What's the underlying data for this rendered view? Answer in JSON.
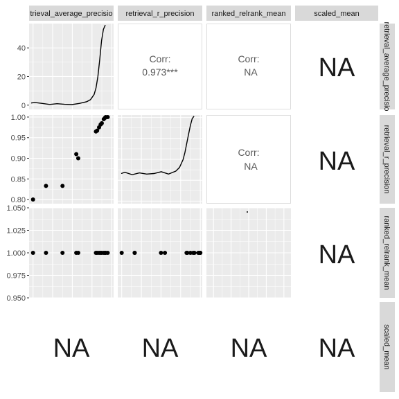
{
  "chart_data": {
    "type": "scatter-matrix",
    "variables": [
      "retrieval_average_precision",
      "retrieval_r_precision",
      "ranked_relrank_mean",
      "scaled_mean"
    ],
    "column_strips": [
      "trieval_average_precisio",
      "retrieval_r_precision",
      "ranked_relrank_mean",
      "scaled_mean"
    ],
    "row_strips": [
      "retrieval_average_precisio",
      "retrieval_r_precision",
      "ranked_relrank_mean",
      "scaled_mean"
    ],
    "correlations": {
      "r1c2": {
        "label": "Corr:",
        "value": "0.973***"
      },
      "r1c3": {
        "label": "Corr:",
        "value": "NA"
      },
      "r2c3": {
        "label": "Corr:",
        "value": "NA"
      }
    },
    "na_text": "NA",
    "axes": {
      "row1": {
        "ticks": [
          0,
          20,
          40
        ],
        "tick_labels": [
          "0",
          "20",
          "40"
        ],
        "ylim": [
          -3,
          57
        ]
      },
      "row2": {
        "ticks": [
          0.8,
          0.85,
          0.9,
          0.95,
          1.0
        ],
        "tick_labels": [
          "0.80",
          "0.85",
          "0.90",
          "0.95",
          "1.00"
        ],
        "ylim": [
          0.79,
          1.005
        ]
      },
      "row3": {
        "ticks": [
          0.95,
          0.975,
          1.0,
          1.025,
          1.05
        ],
        "tick_labels": [
          "0.950",
          "0.975",
          "1.000",
          "1.025",
          "1.050"
        ],
        "ylim": [
          0.95,
          1.05
        ]
      },
      "col1_xlim": [
        0.79,
        1.005
      ],
      "col2_xlim": [
        0.79,
        1.005
      ]
    },
    "points": [
      {
        "avg_precision": 0.8,
        "r_precision": 0.8,
        "relrank_mean": 1.0
      },
      {
        "avg_precision": 0.833,
        "r_precision": 0.833,
        "relrank_mean": 1.0
      },
      {
        "avg_precision": 0.875,
        "r_precision": 0.833,
        "relrank_mean": 1.0
      },
      {
        "avg_precision": 0.91,
        "r_precision": 0.91,
        "relrank_mean": 1.0
      },
      {
        "avg_precision": 0.915,
        "r_precision": 0.9,
        "relrank_mean": 1.0
      },
      {
        "avg_precision": 0.96,
        "r_precision": 0.965,
        "relrank_mean": 1.0
      },
      {
        "avg_precision": 0.963,
        "r_precision": 0.967,
        "relrank_mean": 1.0
      },
      {
        "avg_precision": 0.968,
        "r_precision": 0.975,
        "relrank_mean": 1.0
      },
      {
        "avg_precision": 0.972,
        "r_precision": 0.982,
        "relrank_mean": 1.0
      },
      {
        "avg_precision": 0.975,
        "r_precision": 0.985,
        "relrank_mean": 1.0
      },
      {
        "avg_precision": 0.98,
        "r_precision": 0.995,
        "relrank_mean": 1.0
      },
      {
        "avg_precision": 0.983,
        "r_precision": 0.998,
        "relrank_mean": 1.0
      },
      {
        "avg_precision": 0.985,
        "r_precision": 1.0,
        "relrank_mean": 1.0
      },
      {
        "avg_precision": 0.99,
        "r_precision": 1.0,
        "relrank_mean": 1.0
      }
    ],
    "density_avg_precision": {
      "x": [
        0.79,
        0.8,
        0.82,
        0.84,
        0.86,
        0.88,
        0.9,
        0.92,
        0.94,
        0.95,
        0.96,
        0.965,
        0.97,
        0.975,
        0.98,
        0.985,
        0.99
      ],
      "y": [
        1.5,
        1.9,
        1.2,
        0.5,
        1.0,
        0.6,
        0.4,
        1.2,
        2.4,
        3.8,
        7.5,
        12,
        20,
        32,
        45,
        53,
        56
      ]
    },
    "density_r_precision": {
      "x": [
        0.79,
        0.8,
        0.82,
        0.84,
        0.86,
        0.88,
        0.9,
        0.92,
        0.94,
        0.95,
        0.96,
        0.965,
        0.97,
        0.975,
        0.98,
        0.985,
        0.99
      ],
      "y": [
        0.05,
        0.07,
        0.03,
        0.06,
        0.04,
        0.05,
        0.08,
        0.04,
        0.09,
        0.15,
        0.28,
        0.4,
        0.55,
        0.7,
        0.85,
        0.96,
        1.0
      ]
    }
  }
}
